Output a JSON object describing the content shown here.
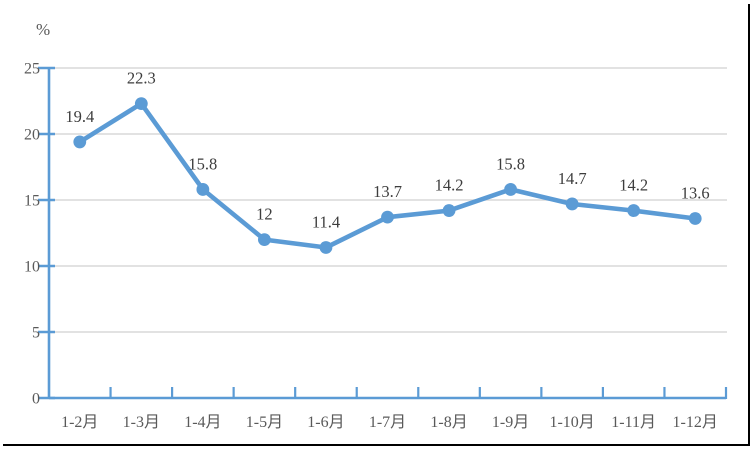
{
  "chart_data": {
    "type": "line",
    "title": "",
    "unit_label": "%",
    "categories": [
      "1-2月",
      "1-3月",
      "1-4月",
      "1-5月",
      "1-6月",
      "1-7月",
      "1-8月",
      "1-9月",
      "1-10月",
      "1-11月",
      "1-12月"
    ],
    "series": [
      {
        "name": "",
        "values": [
          19.4,
          22.3,
          15.8,
          12,
          11.4,
          13.7,
          14.2,
          15.8,
          14.7,
          14.2,
          13.6
        ]
      }
    ],
    "data_labels": [
      "19.4",
      "22.3",
      "15.8",
      "12",
      "11.4",
      "13.7",
      "14.2",
      "15.8",
      "14.7",
      "14.2",
      "13.6"
    ],
    "xlabel": "",
    "ylabel": "%",
    "ylim": [
      0,
      25
    ],
    "yticks": [
      0,
      5,
      10,
      15,
      20,
      25
    ],
    "grid": true,
    "legend": "none",
    "colors": {
      "line": "#5B9BD5",
      "marker": "#5B9BD5",
      "axis": "#5B9BD5",
      "gridline": "#D9D9D9",
      "data_label_text": "#3D3D3D",
      "tick_label_text": "#595959",
      "frame_border": "#000000",
      "background": "#FFFFFF"
    }
  }
}
